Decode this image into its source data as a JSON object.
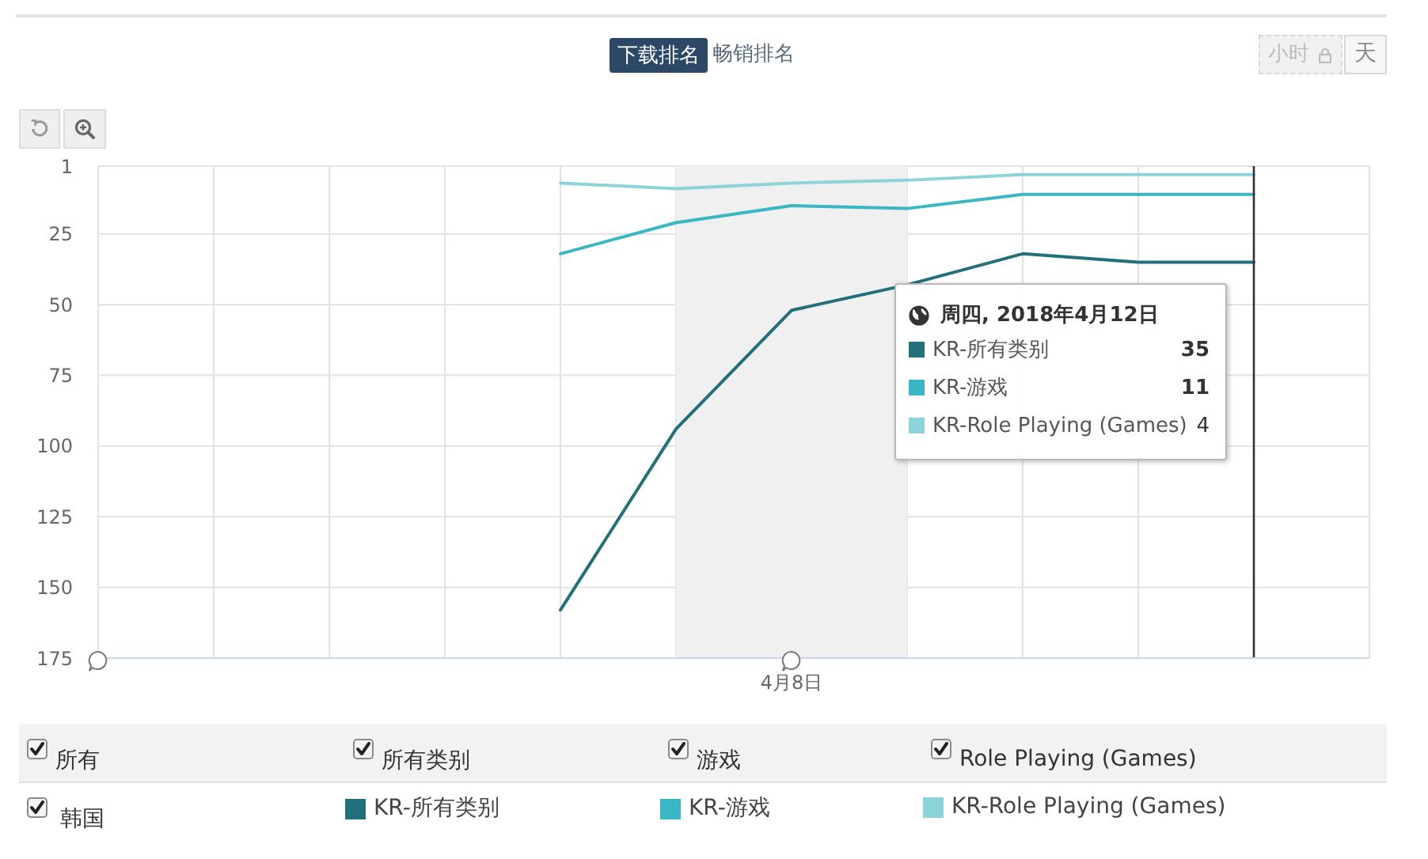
{
  "chart_data": {
    "type": "line",
    "categories": [
      null,
      null,
      null,
      null,
      null,
      null,
      "4月8日",
      null,
      null,
      null,
      null,
      null
    ],
    "series": [
      {
        "name": "KR-所有类别",
        "color": "#22707a",
        "values": [
          null,
          null,
          null,
          null,
          158,
          94,
          52,
          43,
          32,
          35,
          35,
          null
        ]
      },
      {
        "name": "KR-游戏",
        "color": "#3ab7c4",
        "values": [
          null,
          null,
          null,
          null,
          32,
          21,
          15,
          16,
          11,
          11,
          11,
          null
        ]
      },
      {
        "name": "KR-Role Playing (Games)",
        "color": "#8dd4da",
        "values": [
          null,
          null,
          null,
          null,
          7,
          9,
          7,
          6,
          4,
          4,
          4,
          null
        ]
      }
    ],
    "ylim": [
      175,
      1
    ],
    "yticks": [
      1,
      25,
      50,
      75,
      100,
      125,
      150,
      175
    ],
    "grid": true,
    "legend": "bottom",
    "marker": "none",
    "line_style": "solid",
    "annotations": [
      "下载排名",
      "畅销排名",
      "小时",
      "天",
      "周四, 2018年4月12日",
      "KR-所有类别",
      "35",
      "KR-游戏",
      "11",
      "KR-Role Playing (Games)",
      "4",
      "所有",
      "所有类别",
      "游戏",
      "Role Playing (Games)",
      "韩国"
    ]
  }
}
